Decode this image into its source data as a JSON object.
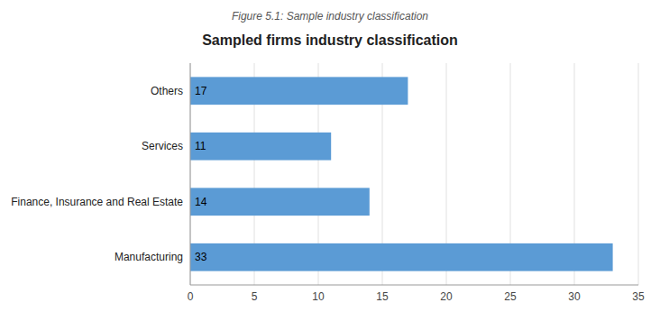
{
  "chart_data": {
    "type": "bar",
    "orientation": "horizontal",
    "title": "Sampled firms industry classification",
    "annotations": [
      "Figure 5.1: Sample industry classification"
    ],
    "categories": [
      "Manufacturing",
      "Finance, Insurance and Real Estate",
      "Services",
      "Others"
    ],
    "values": [
      33,
      14,
      11,
      17
    ],
    "color": "#5B9BD5",
    "xlim": [
      0,
      35
    ],
    "xticks": [
      0,
      5,
      10,
      15,
      20,
      25,
      30,
      35
    ],
    "grid": true,
    "data_labels": true
  }
}
